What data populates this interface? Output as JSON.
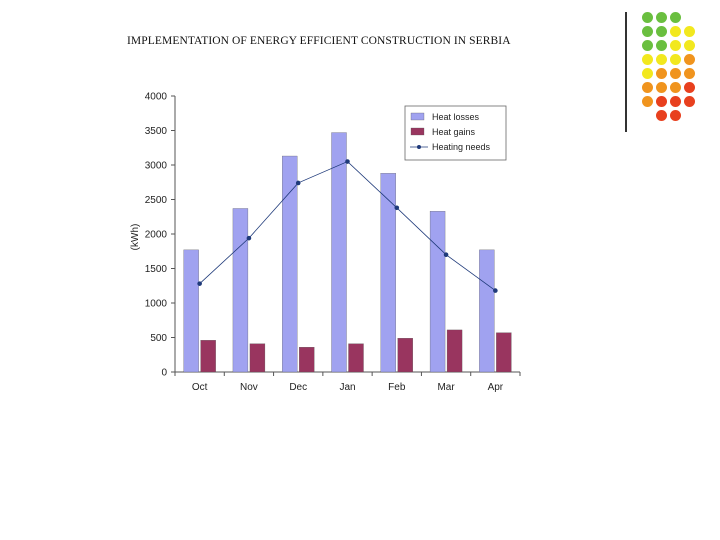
{
  "slide": {
    "title": "IMPLEMENTATION OF ENERGY EFFICIENT CONSTRUCTION IN SERBIA"
  },
  "decoration": {
    "dot_colors": [
      [
        "#6abf3f",
        "#6abf3f",
        "#6abf3f",
        null
      ],
      [
        "#6abf3f",
        "#6abf3f",
        "#f2e81e",
        "#f2e81e"
      ],
      [
        "#6abf3f",
        "#6abf3f",
        "#f2e81e",
        "#f2e81e"
      ],
      [
        "#f2e81e",
        "#f2e81e",
        "#f2e81e",
        "#f0941e"
      ],
      [
        "#f2e81e",
        "#f0941e",
        "#f0941e",
        "#f0941e"
      ],
      [
        "#f0941e",
        "#f0941e",
        "#f0941e",
        "#e8401e"
      ],
      [
        "#f0941e",
        "#e8401e",
        "#e8401e",
        "#e8401e"
      ],
      [
        null,
        "#e8401e",
        "#e8401e",
        null
      ]
    ]
  },
  "chart_data": {
    "type": "bar",
    "categories": [
      "Oct",
      "Nov",
      "Dec",
      "Jan",
      "Feb",
      "Mar",
      "Apr"
    ],
    "ylabel": "(kWh)",
    "ylim": [
      0,
      4000
    ],
    "yticks": [
      0,
      500,
      1000,
      1500,
      2000,
      2500,
      3000,
      3500,
      4000
    ],
    "grid": false,
    "legend_position": "top-right",
    "series": [
      {
        "name": "Heat losses",
        "kind": "bar",
        "color": "#a0a2f0",
        "values": [
          1770,
          2370,
          3130,
          3470,
          2880,
          2330,
          1770
        ]
      },
      {
        "name": "Heat gains",
        "kind": "bar",
        "color": "#99355f",
        "values": [
          460,
          410,
          360,
          410,
          490,
          610,
          570
        ]
      },
      {
        "name": "Heating needs",
        "kind": "line",
        "color": "#1f3a7a",
        "values": [
          1280,
          1940,
          2740,
          3050,
          2380,
          1700,
          1180
        ]
      }
    ]
  }
}
